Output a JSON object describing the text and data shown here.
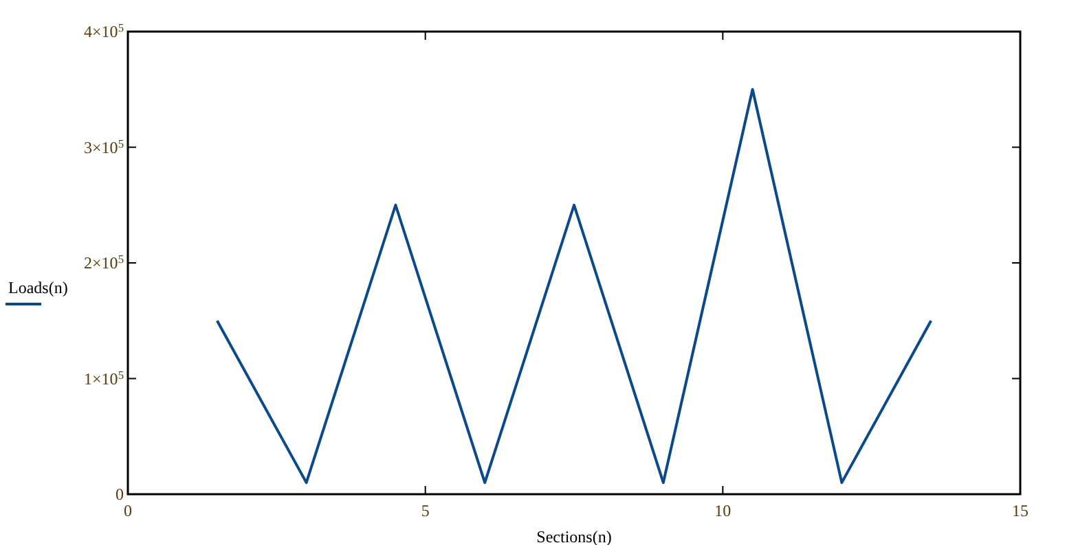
{
  "chart_data": {
    "type": "line",
    "xlabel": "Sections(n)",
    "x": [
      1.5,
      3,
      4.5,
      6,
      7.5,
      9,
      10.5,
      12,
      13.5
    ],
    "series": [
      {
        "name": "Loads(n)",
        "color": "#0b4a8a",
        "values": [
          150000,
          10000,
          250000,
          10000,
          250000,
          10000,
          350000,
          10000,
          150000
        ]
      }
    ],
    "xlim": [
      0,
      15
    ],
    "xticks": [
      0,
      5,
      10,
      15
    ],
    "ylim": [
      0,
      400000
    ],
    "yticks": [
      0,
      {
        "value": 100000,
        "label": "1×10$^{5}$"
      },
      {
        "value": 200000,
        "label": "2×10$^{5}$"
      },
      {
        "value": 300000,
        "label": "3×10$^{5}$"
      },
      {
        "value": 400000,
        "label": "4×10$^{5}$"
      }
    ],
    "legend": "left",
    "grid": false,
    "marker": "none",
    "line_style": "solid"
  }
}
